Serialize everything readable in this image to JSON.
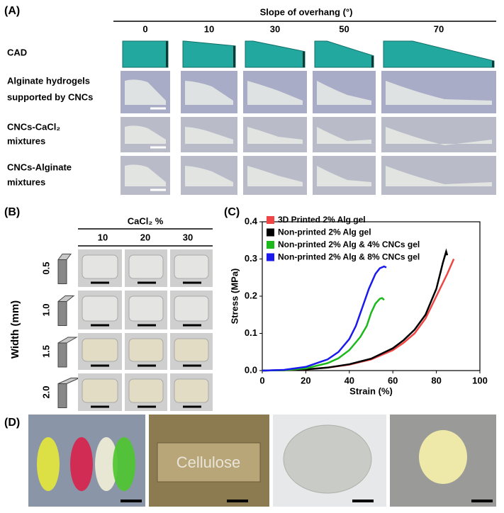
{
  "panel_labels": [
    "(A)",
    "(B)",
    "(C)",
    "(D)"
  ],
  "panel_a": {
    "header": "Slope of overhang (°)",
    "columns": [
      "0",
      "10",
      "30",
      "50",
      "70"
    ],
    "rows": [
      [
        "CAD"
      ],
      [
        "Alginate hydrogels",
        "supported by CNCs"
      ],
      [
        "CNCs-CaCl₂",
        "mixtures"
      ],
      [
        "CNCs-Alginate",
        "mixtures"
      ]
    ]
  },
  "panel_b": {
    "header": "CaCl₂ %",
    "columns": [
      "10",
      "20",
      "30"
    ],
    "side_label": "Width (mm)",
    "rows": [
      "0.5",
      "1.0",
      "1.5",
      "2.0"
    ]
  },
  "panel_d": {
    "photo_text": "Cellulose"
  },
  "chart_data": {
    "type": "line",
    "xlabel": "Strain (%)",
    "ylabel": "Stress (MPa)",
    "xlim": [
      0,
      100
    ],
    "xticks": [
      0,
      20,
      40,
      60,
      80,
      100
    ],
    "ylim": [
      0,
      0.4
    ],
    "yticks": [
      {
        "value": 0,
        "label": "0.0"
      },
      0.1,
      0.2,
      0.3,
      0.4
    ],
    "legend": "upper left",
    "series": [
      {
        "name": "3D Printed 2% Alg gel",
        "color": "#f04545",
        "x": [
          0,
          10,
          20,
          30,
          40,
          50,
          60,
          65,
          70,
          75,
          80,
          85,
          88
        ],
        "values": [
          0,
          0.001,
          0.003,
          0.008,
          0.016,
          0.03,
          0.055,
          0.075,
          0.1,
          0.14,
          0.2,
          0.26,
          0.3
        ]
      },
      {
        "name": "Non-printed 2% Alg gel",
        "color": "#000000",
        "x": [
          0,
          10,
          20,
          30,
          40,
          50,
          60,
          65,
          70,
          75,
          80,
          83,
          84.5,
          85
        ],
        "values": [
          0,
          0.001,
          0.003,
          0.008,
          0.017,
          0.032,
          0.06,
          0.082,
          0.11,
          0.15,
          0.22,
          0.29,
          0.32,
          0.31
        ]
      },
      {
        "name": "Non-printed 2% Alg & 4% CNCs gel",
        "color": "#1cb81c",
        "x": [
          0,
          10,
          20,
          30,
          35,
          40,
          45,
          48,
          50,
          52,
          54,
          55,
          56
        ],
        "values": [
          0,
          0.001,
          0.006,
          0.02,
          0.033,
          0.055,
          0.09,
          0.12,
          0.155,
          0.18,
          0.193,
          0.195,
          0.19
        ]
      },
      {
        "name": "Non-printed 2% Alg & 8% CNCs gel",
        "color": "#1a1aee",
        "x": [
          0,
          10,
          20,
          30,
          35,
          40,
          43,
          46,
          49,
          52,
          54,
          56,
          57
        ],
        "values": [
          0,
          0.002,
          0.01,
          0.03,
          0.05,
          0.085,
          0.12,
          0.17,
          0.22,
          0.26,
          0.275,
          0.28,
          0.277
        ]
      }
    ]
  }
}
